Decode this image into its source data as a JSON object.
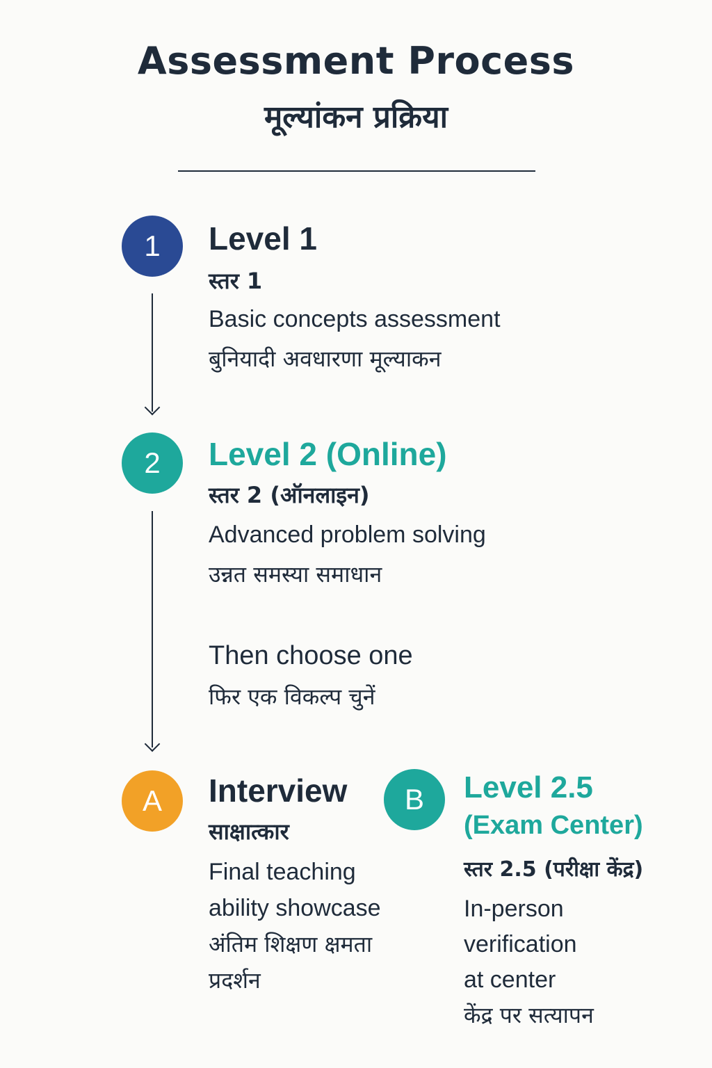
{
  "header": {
    "title": "Assessment Process",
    "subtitle": "मूल्यांकन प्रक्रिया"
  },
  "steps": [
    {
      "badge": "1",
      "title": "Level 1",
      "title_hi": "स्तर 1",
      "desc": "Basic concepts assessment",
      "desc_hi": "बुनियादी अवधारणा मूल्याकन"
    },
    {
      "badge": "2",
      "title": "Level 2 (Online)",
      "title_hi": "स्तर 2 (ऑनलाइन)",
      "desc": "Advanced problem solving",
      "desc_hi": "उन्नत समस्या समाधान"
    }
  ],
  "choice": {
    "label": "Then choose one",
    "label_hi": "फिर एक विकल्प चुनें"
  },
  "options": [
    {
      "badge": "A",
      "title": "Interview",
      "title_hi": "साक्षात्कार",
      "desc_lines": [
        "Final teaching",
        "ability showcase"
      ],
      "desc_hi_lines": [
        "अंतिम शिक्षण क्षमता",
        "प्रदर्शन"
      ]
    },
    {
      "badge": "B",
      "title_lines": [
        "Level 2.5",
        "(Exam Center)"
      ],
      "title_hi": "स्तर 2.5 (परीक्षा केंद्र)",
      "desc_lines": [
        "In-person",
        "verification",
        "at center"
      ],
      "desc_hi": "केंद्र पर सत्यापन"
    }
  ],
  "colors": {
    "navy": "#2a4a94",
    "teal": "#1ea89c",
    "orange": "#f2a127",
    "text": "#1f2b3a"
  }
}
